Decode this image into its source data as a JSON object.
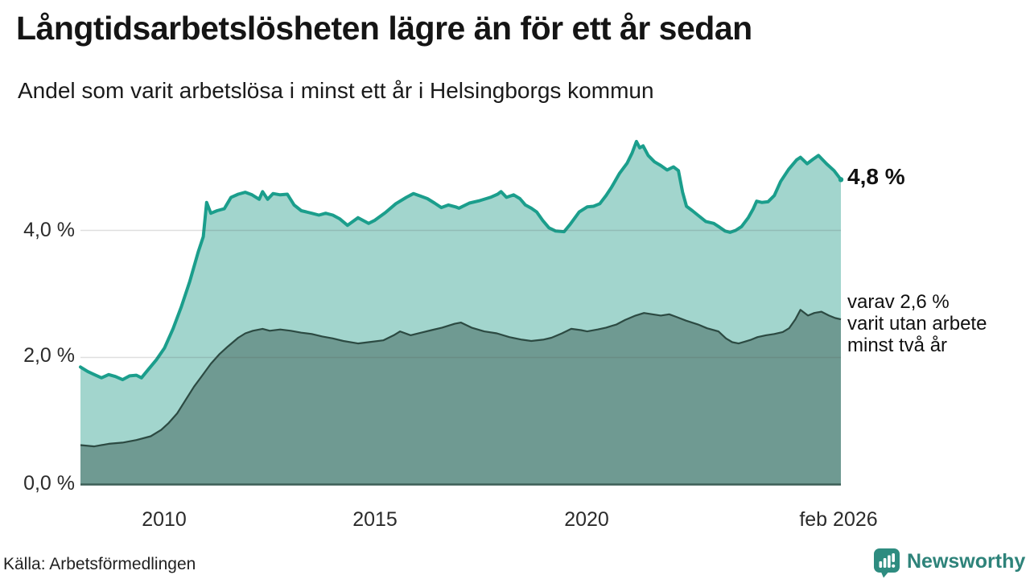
{
  "title": "Långtidsarbetslösheten lägre än för ett år sedan",
  "subtitle": "Andel som varit arbetslösa i minst ett år i Helsingborgs kommun",
  "annotations": {
    "end_value": "4,8 %",
    "secondary": "varav 2,6 %\nvarit utan arbete\nminst två år"
  },
  "source": "Källa: Arbetsförmedlingen",
  "logo": {
    "name": "Newsworthy"
  },
  "axes": {
    "y_ticks": [
      "4,0 %",
      "2,0 %",
      "0,0 %"
    ],
    "x_ticks": [
      "2010",
      "2015",
      "2020",
      "feb 2026"
    ]
  },
  "colors": {
    "line_total": "#1b9e8c",
    "fill_total": "#a2d5cd",
    "line_two_years": "#2c4a42",
    "fill_two_years": "#6f9a92",
    "baseline": "#3c5e56",
    "gridline": "rgba(80,80,80,0.18)",
    "brand_teal": "#2e837a"
  },
  "chart_data": {
    "type": "area",
    "title": "Långtidsarbetslösheten lägre än för ett år sedan",
    "subtitle": "Andel som varit arbetslösa i minst ett år i Helsingborgs kommun",
    "unit": "%",
    "x_range": [
      2008.0,
      2026.083
    ],
    "ylim": [
      0,
      5.6
    ],
    "y_gridlines": [
      2.0,
      4.0
    ],
    "x_tick_years": [
      2010,
      2015,
      2020,
      2026.083
    ],
    "series": [
      {
        "name": "Arbetslösa minst ett år (totalt)",
        "end_label": "4,8 %",
        "points": [
          [
            2008.0,
            1.85
          ],
          [
            2008.17,
            1.78
          ],
          [
            2008.33,
            1.73
          ],
          [
            2008.5,
            1.68
          ],
          [
            2008.67,
            1.73
          ],
          [
            2008.83,
            1.7
          ],
          [
            2009.0,
            1.65
          ],
          [
            2009.17,
            1.71
          ],
          [
            2009.33,
            1.72
          ],
          [
            2009.45,
            1.68
          ],
          [
            2009.6,
            1.8
          ],
          [
            2009.8,
            1.96
          ],
          [
            2010.0,
            2.15
          ],
          [
            2010.2,
            2.45
          ],
          [
            2010.4,
            2.8
          ],
          [
            2010.6,
            3.2
          ],
          [
            2010.8,
            3.66
          ],
          [
            2010.92,
            3.9
          ],
          [
            2011.0,
            4.44
          ],
          [
            2011.1,
            4.27
          ],
          [
            2011.25,
            4.31
          ],
          [
            2011.42,
            4.34
          ],
          [
            2011.58,
            4.52
          ],
          [
            2011.75,
            4.57
          ],
          [
            2011.92,
            4.6
          ],
          [
            2012.08,
            4.56
          ],
          [
            2012.25,
            4.49
          ],
          [
            2012.33,
            4.61
          ],
          [
            2012.45,
            4.49
          ],
          [
            2012.58,
            4.58
          ],
          [
            2012.75,
            4.56
          ],
          [
            2012.92,
            4.57
          ],
          [
            2013.08,
            4.4
          ],
          [
            2013.25,
            4.31
          ],
          [
            2013.5,
            4.27
          ],
          [
            2013.67,
            4.24
          ],
          [
            2013.83,
            4.27
          ],
          [
            2014.0,
            4.24
          ],
          [
            2014.17,
            4.18
          ],
          [
            2014.35,
            4.08
          ],
          [
            2014.6,
            4.2
          ],
          [
            2014.85,
            4.11
          ],
          [
            2015.0,
            4.16
          ],
          [
            2015.25,
            4.28
          ],
          [
            2015.5,
            4.42
          ],
          [
            2015.75,
            4.52
          ],
          [
            2015.92,
            4.58
          ],
          [
            2016.08,
            4.54
          ],
          [
            2016.25,
            4.5
          ],
          [
            2016.42,
            4.43
          ],
          [
            2016.58,
            4.36
          ],
          [
            2016.75,
            4.4
          ],
          [
            2016.92,
            4.37
          ],
          [
            2017.0,
            4.35
          ],
          [
            2017.25,
            4.43
          ],
          [
            2017.5,
            4.47
          ],
          [
            2017.75,
            4.52
          ],
          [
            2017.92,
            4.57
          ],
          [
            2018.0,
            4.61
          ],
          [
            2018.13,
            4.52
          ],
          [
            2018.3,
            4.56
          ],
          [
            2018.45,
            4.5
          ],
          [
            2018.58,
            4.4
          ],
          [
            2018.72,
            4.35
          ],
          [
            2018.85,
            4.29
          ],
          [
            2019.0,
            4.15
          ],
          [
            2019.14,
            4.04
          ],
          [
            2019.3,
            3.99
          ],
          [
            2019.5,
            3.98
          ],
          [
            2019.65,
            4.1
          ],
          [
            2019.86,
            4.29
          ],
          [
            2020.05,
            4.37
          ],
          [
            2020.2,
            4.38
          ],
          [
            2020.35,
            4.42
          ],
          [
            2020.5,
            4.55
          ],
          [
            2020.63,
            4.68
          ],
          [
            2020.82,
            4.9
          ],
          [
            2021.0,
            5.06
          ],
          [
            2021.12,
            5.22
          ],
          [
            2021.22,
            5.4
          ],
          [
            2021.3,
            5.3
          ],
          [
            2021.38,
            5.33
          ],
          [
            2021.5,
            5.18
          ],
          [
            2021.65,
            5.08
          ],
          [
            2021.8,
            5.02
          ],
          [
            2021.95,
            4.95
          ],
          [
            2022.1,
            5.0
          ],
          [
            2022.22,
            4.94
          ],
          [
            2022.32,
            4.6
          ],
          [
            2022.41,
            4.38
          ],
          [
            2022.55,
            4.31
          ],
          [
            2022.68,
            4.24
          ],
          [
            2022.87,
            4.14
          ],
          [
            2023.06,
            4.11
          ],
          [
            2023.2,
            4.05
          ],
          [
            2023.33,
            3.99
          ],
          [
            2023.45,
            3.97
          ],
          [
            2023.58,
            4.0
          ],
          [
            2023.72,
            4.06
          ],
          [
            2023.88,
            4.2
          ],
          [
            2024.0,
            4.34
          ],
          [
            2024.08,
            4.46
          ],
          [
            2024.2,
            4.44
          ],
          [
            2024.35,
            4.45
          ],
          [
            2024.5,
            4.55
          ],
          [
            2024.65,
            4.77
          ],
          [
            2024.84,
            4.96
          ],
          [
            2025.03,
            5.11
          ],
          [
            2025.12,
            5.15
          ],
          [
            2025.28,
            5.05
          ],
          [
            2025.42,
            5.12
          ],
          [
            2025.55,
            5.18
          ],
          [
            2025.74,
            5.05
          ],
          [
            2025.92,
            4.94
          ],
          [
            2026.083,
            4.8
          ]
        ]
      },
      {
        "name": "varav utan arbete minst två år",
        "end_label": "varav 2,6 % varit utan arbete minst två år",
        "points": [
          [
            2008.0,
            0.62
          ],
          [
            2008.33,
            0.6
          ],
          [
            2008.67,
            0.64
          ],
          [
            2009.0,
            0.66
          ],
          [
            2009.33,
            0.7
          ],
          [
            2009.67,
            0.76
          ],
          [
            2009.92,
            0.86
          ],
          [
            2010.1,
            0.97
          ],
          [
            2010.3,
            1.12
          ],
          [
            2010.5,
            1.33
          ],
          [
            2010.7,
            1.54
          ],
          [
            2010.9,
            1.72
          ],
          [
            2011.1,
            1.9
          ],
          [
            2011.3,
            2.05
          ],
          [
            2011.5,
            2.17
          ],
          [
            2011.75,
            2.31
          ],
          [
            2011.92,
            2.38
          ],
          [
            2012.1,
            2.42
          ],
          [
            2012.33,
            2.45
          ],
          [
            2012.5,
            2.42
          ],
          [
            2012.75,
            2.44
          ],
          [
            2013.0,
            2.42
          ],
          [
            2013.25,
            2.39
          ],
          [
            2013.5,
            2.37
          ],
          [
            2013.75,
            2.33
          ],
          [
            2014.0,
            2.3
          ],
          [
            2014.25,
            2.26
          ],
          [
            2014.6,
            2.22
          ],
          [
            2014.85,
            2.24
          ],
          [
            2015.2,
            2.27
          ],
          [
            2015.45,
            2.35
          ],
          [
            2015.6,
            2.41
          ],
          [
            2015.85,
            2.35
          ],
          [
            2016.1,
            2.39
          ],
          [
            2016.35,
            2.43
          ],
          [
            2016.6,
            2.47
          ],
          [
            2016.9,
            2.53
          ],
          [
            2017.05,
            2.55
          ],
          [
            2017.3,
            2.47
          ],
          [
            2017.6,
            2.41
          ],
          [
            2017.9,
            2.38
          ],
          [
            2018.2,
            2.32
          ],
          [
            2018.5,
            2.28
          ],
          [
            2018.72,
            2.26
          ],
          [
            2019.0,
            2.28
          ],
          [
            2019.2,
            2.31
          ],
          [
            2019.45,
            2.38
          ],
          [
            2019.67,
            2.45
          ],
          [
            2019.9,
            2.43
          ],
          [
            2020.05,
            2.41
          ],
          [
            2020.3,
            2.44
          ],
          [
            2020.5,
            2.47
          ],
          [
            2020.75,
            2.52
          ],
          [
            2020.95,
            2.59
          ],
          [
            2021.2,
            2.66
          ],
          [
            2021.4,
            2.7
          ],
          [
            2021.6,
            2.68
          ],
          [
            2021.8,
            2.66
          ],
          [
            2022.0,
            2.68
          ],
          [
            2022.16,
            2.64
          ],
          [
            2022.4,
            2.58
          ],
          [
            2022.68,
            2.52
          ],
          [
            2022.9,
            2.46
          ],
          [
            2023.17,
            2.41
          ],
          [
            2023.35,
            2.3
          ],
          [
            2023.5,
            2.24
          ],
          [
            2023.65,
            2.22
          ],
          [
            2023.8,
            2.25
          ],
          [
            2023.95,
            2.28
          ],
          [
            2024.1,
            2.32
          ],
          [
            2024.3,
            2.35
          ],
          [
            2024.5,
            2.37
          ],
          [
            2024.7,
            2.4
          ],
          [
            2024.85,
            2.46
          ],
          [
            2025.0,
            2.6
          ],
          [
            2025.12,
            2.75
          ],
          [
            2025.3,
            2.66
          ],
          [
            2025.45,
            2.7
          ],
          [
            2025.62,
            2.72
          ],
          [
            2025.8,
            2.66
          ],
          [
            2025.95,
            2.62
          ],
          [
            2026.083,
            2.6
          ]
        ]
      }
    ]
  }
}
